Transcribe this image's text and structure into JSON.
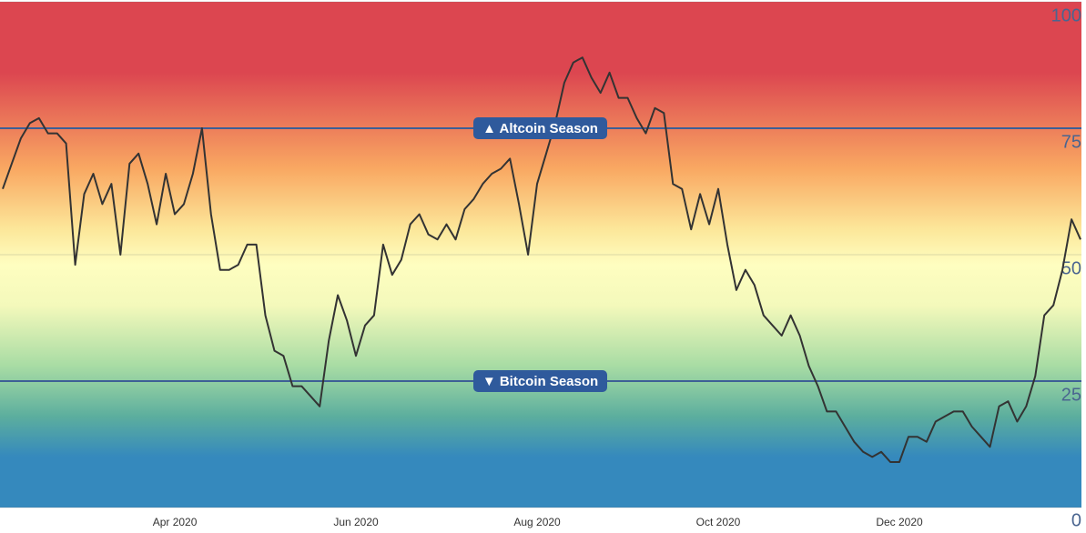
{
  "chart_data": {
    "type": "line",
    "categories": [
      null,
      null,
      null,
      null,
      null,
      null,
      null,
      null,
      null,
      null,
      null,
      null,
      null,
      null,
      null,
      null,
      null,
      null,
      null,
      "Apr 2020",
      null,
      null,
      null,
      null,
      null,
      null,
      null,
      null,
      null,
      null,
      null,
      null,
      null,
      null,
      null,
      null,
      null,
      null,
      null,
      "Jun 2020",
      null,
      null,
      null,
      null,
      null,
      null,
      null,
      null,
      null,
      null,
      null,
      null,
      null,
      null,
      null,
      null,
      null,
      null,
      null,
      "Aug 2020",
      null,
      null,
      null,
      null,
      null,
      null,
      null,
      null,
      null,
      null,
      null,
      null,
      null,
      null,
      null,
      null,
      null,
      null,
      null,
      "Oct 2020",
      null,
      null,
      null,
      null,
      null,
      null,
      null,
      null,
      null,
      null,
      null,
      null,
      null,
      null,
      null,
      null,
      null,
      null,
      null,
      "Dec 2020",
      null,
      null,
      null,
      null,
      null,
      null,
      null,
      null,
      null,
      null,
      null,
      null,
      null,
      null,
      null,
      null,
      null,
      null,
      null,
      null
    ],
    "series": [
      {
        "color": "#333333",
        "values": [
          63,
          68,
          73,
          76,
          77,
          74,
          74,
          72,
          48,
          62,
          66,
          60,
          64,
          50,
          68,
          70,
          64,
          56,
          66,
          58,
          60,
          66,
          75,
          58,
          47,
          47,
          48,
          52,
          52,
          38,
          31,
          30,
          24,
          24,
          22,
          20,
          33,
          42,
          37,
          30,
          36,
          38,
          52,
          46,
          49,
          56,
          58,
          54,
          53,
          56,
          53,
          59,
          61,
          64,
          66,
          67,
          69,
          60,
          50,
          64,
          70,
          76,
          84,
          88,
          89,
          85,
          82,
          86,
          81,
          81,
          77,
          74,
          79,
          78,
          64,
          63,
          55,
          62,
          56,
          63,
          52,
          43,
          47,
          44,
          38,
          36,
          34,
          38,
          34,
          28,
          24,
          19,
          19,
          16,
          13,
          11,
          10,
          11,
          9,
          9,
          14,
          14,
          13,
          17,
          18,
          19,
          19,
          16,
          14,
          12,
          20,
          21,
          17,
          20,
          26,
          38,
          40,
          47,
          57,
          53
        ]
      }
    ],
    "ylim": [
      0,
      100
    ],
    "yticks": [
      0,
      25,
      50,
      75,
      100
    ],
    "grid": true,
    "annotations": [
      {
        "text": "▲ Altcoin Season",
        "value": 75
      },
      {
        "text": "▼ Bitcoin Season",
        "value": 25
      }
    ]
  }
}
